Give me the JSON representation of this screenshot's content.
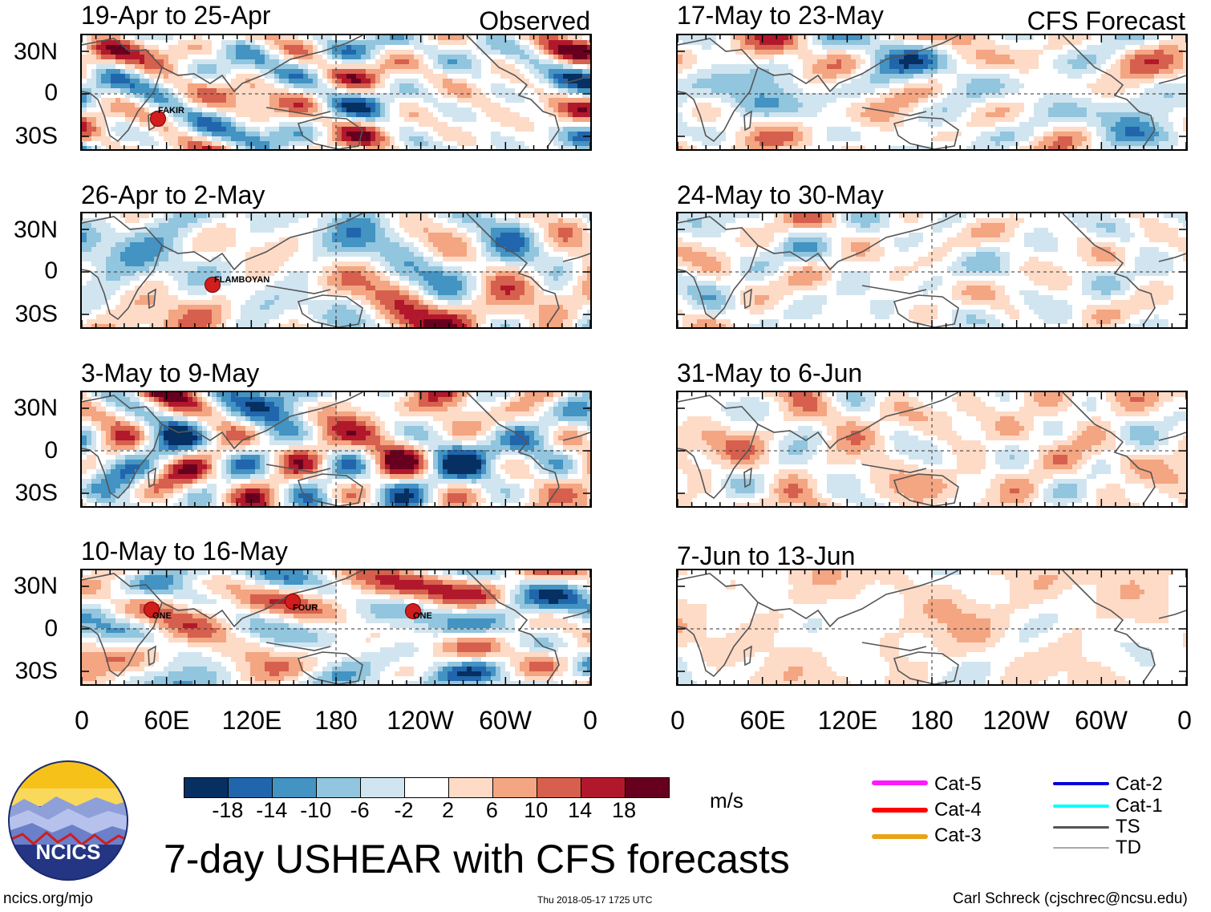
{
  "headers": {
    "observed": "Observed",
    "forecast": "CFS Forecast"
  },
  "panels_observed": [
    "19-Apr to 25-Apr",
    "26-Apr to 2-May",
    "3-May to 9-May",
    "10-May to 16-May"
  ],
  "panels_forecast": [
    "17-May to 23-May",
    "24-May to 30-May",
    "31-May to 6-Jun",
    "7-Jun to 13-Jun"
  ],
  "lat_ticks": [
    "30N",
    "0",
    "30S"
  ],
  "lon_ticks": [
    "0",
    "60E",
    "120E",
    "180",
    "120W",
    "60W",
    "0"
  ],
  "storms": {
    "fakir": "FAKIR",
    "flamboyan": "FLAMBOYAN",
    "one_a": "ONE",
    "four": "FOUR",
    "one_b": "ONE"
  },
  "colorbar": {
    "ticks": [
      "-18",
      "-14",
      "-10",
      "-6",
      "-2",
      "2",
      "6",
      "10",
      "14",
      "18"
    ],
    "colors": [
      "#053061",
      "#2166ac",
      "#4393c3",
      "#92c5de",
      "#d1e5f0",
      "#ffffff",
      "#fddbc7",
      "#f4a582",
      "#d6604d",
      "#b2182b",
      "#67001f"
    ],
    "units": "m/s"
  },
  "legend": [
    {
      "label": "Cat-5",
      "color": "#ff19ff"
    },
    {
      "label": "Cat-4",
      "color": "#ff0000"
    },
    {
      "label": "Cat-3",
      "color": "#e8a317"
    },
    {
      "label": "Cat-2",
      "color": "#0000dd"
    },
    {
      "label": "Cat-1",
      "color": "#00ffff"
    },
    {
      "label": "TS",
      "color": "#555555"
    },
    {
      "label": "TD",
      "color": "#aaaaaa"
    }
  ],
  "logo_text": "NCICS",
  "main_title": "7-day USHEAR with CFS forecasts",
  "footer": {
    "url": "ncics.org/mjo",
    "timestamp": "Thu 2018-05-17 1725 UTC",
    "author": "Carl Schreck (cjschrec@ncsu.edu)"
  }
}
